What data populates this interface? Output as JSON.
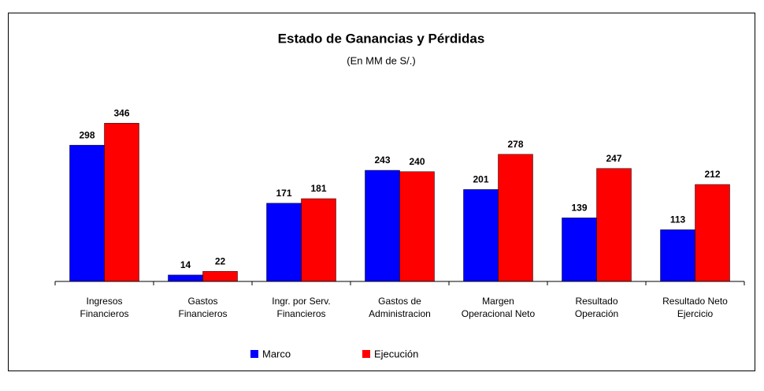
{
  "chart_data": {
    "type": "bar",
    "title": "Estado de Ganancias y Pérdidas",
    "subtitle": "(En MM de S/.)",
    "categories": [
      "Ingresos\nFinancieros",
      "Gastos\nFinancieros",
      "Ingr. por Serv.\nFinancieros",
      "Gastos de\nAdministracion",
      "Margen\nOperacional  Neto",
      "Resultado\nOperación",
      "Resultado Neto\nEjercicio"
    ],
    "series": [
      {
        "name": "Marco",
        "color": "#0000ff",
        "values": [
          298,
          14,
          171,
          243,
          201,
          139,
          113
        ]
      },
      {
        "name": "Ejecución",
        "color": "#ff0000",
        "values": [
          346,
          22,
          181,
          240,
          278,
          247,
          212
        ]
      }
    ],
    "ylim": [
      0,
      400
    ],
    "legend": "bottom"
  }
}
